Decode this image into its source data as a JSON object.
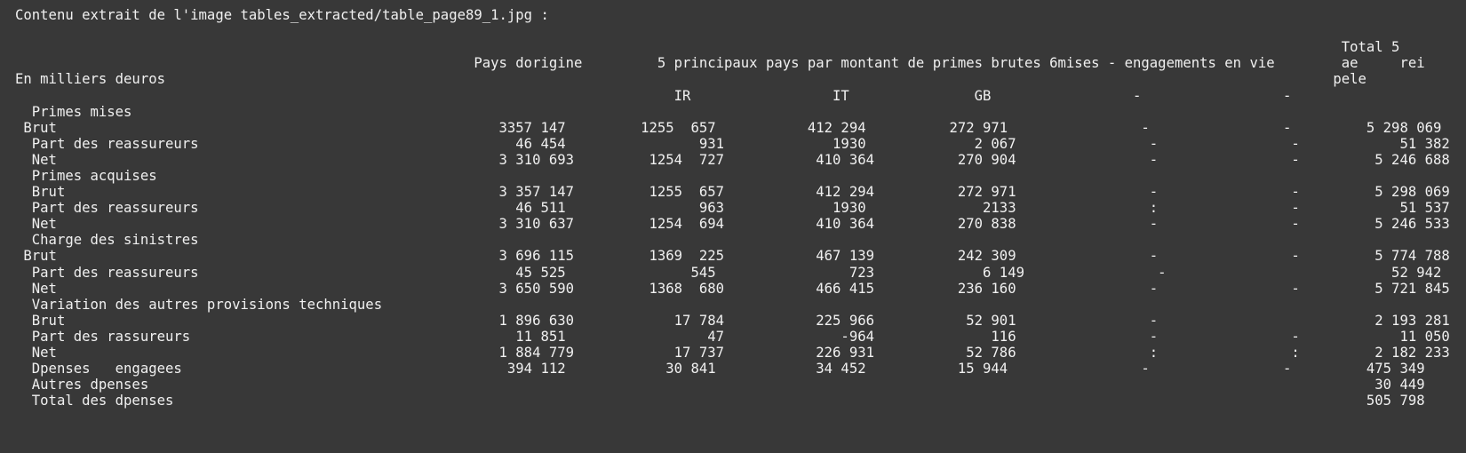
{
  "terminal": {
    "lines": [
      "----------------------------------------------------------------------------------------------",
      "Contenu extrait de l'image tables_extracted/table_page89_1.jpg :",
      "",
      "                                                                                                                                                               Total 5",
      "                                                       Pays dorigine         5 principaux pays par montant de primes brutes 6mises - engagements en vie        ae     rei",
      "En milliers deuros                                                                                                                                            pele",
      "                                                                               IR                 IT               GB                 -                 -",
      "  Primes mises",
      " Brut                                                     3357 147         1255  657           412 294          272 971                -                -         5 298 069",
      "  Part des reassureurs                                      46 454                931             1930             2 067                -                -            51 382",
      "  Net                                                     3 310 693         1254  727           410 364          270 904                -                -         5 246 688",
      "  Primes acquises",
      "  Brut                                                    3 357 147         1255  657           412 294          272 971                -                -         5 298 069",
      "  Part des reassureurs                                      46 511                963             1930              2133                :                -            51 537",
      "  Net                                                     3 310 637         1254  694           410 364          270 838                -                -         5 246 533",
      "  Charge des sinistres",
      " Brut                                                     3 696 115         1369  225           467 139          242 309                -                -         5 774 788",
      "  Part des reassureurs                                      45 525               545                723             6 149                -                           52 942",
      "  Net                                                     3 650 590         1368  680           466 415          236 160                -                -         5 721 845",
      "  Variation des autres provisions techniques",
      "  Brut                                                    1 896 630            17 784           225 966           52 901                -                          2 193 281",
      "  Part des rassureurs                                       11 851                 47              -964              116                -                -            11 050",
      "  Net                                                     1 884 779            17 737           226 931           52 786                :                :         2 182 233",
      "  Dpenses   engagees                                       394 112            30 841            34 452           15 944                -                -         475 349",
      "  Autres dpenses                                                                                                                                                   30 449",
      "  Total des dpenses                                                                                                                                               505 798"
    ]
  }
}
